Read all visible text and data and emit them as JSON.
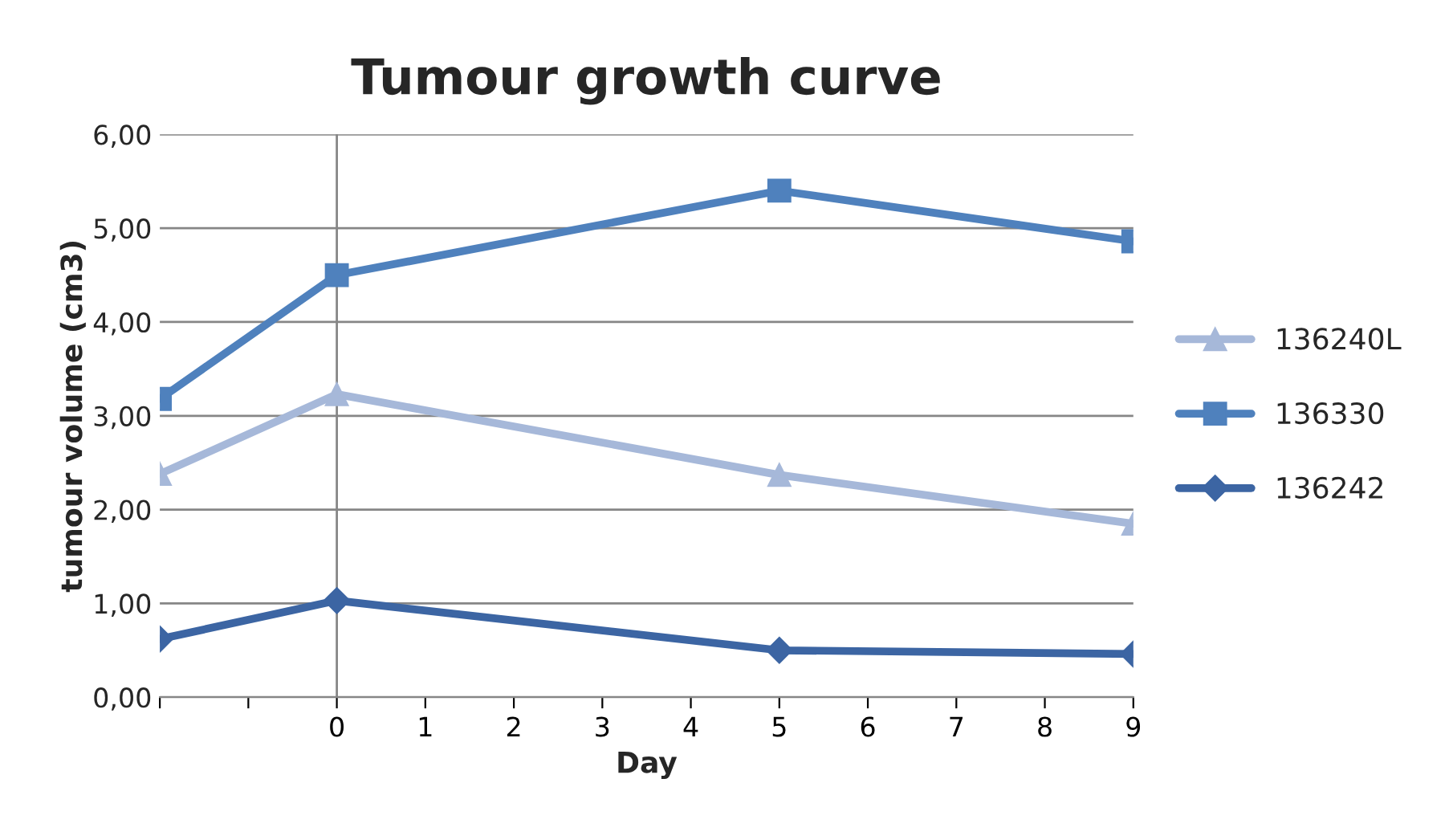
{
  "chart_data": {
    "type": "line",
    "title": "Tumour growth curve",
    "xlabel": "Day",
    "ylabel": "tumour volume (cm3)",
    "x": [
      -2,
      0,
      5,
      9
    ],
    "series": [
      {
        "name": "136240L",
        "color": "#a6b8d9",
        "marker": "triangle",
        "values": [
          2.38,
          3.23,
          2.37,
          1.85
        ]
      },
      {
        "name": "136330",
        "color": "#4f81bd",
        "marker": "square",
        "values": [
          3.18,
          4.5,
          5.4,
          4.86
        ]
      },
      {
        "name": "136242",
        "color": "#3c65a3",
        "marker": "diamond",
        "values": [
          0.62,
          1.03,
          0.5,
          0.46
        ]
      }
    ],
    "xlim": [
      -2,
      9
    ],
    "xticks": [
      {
        "value": -2,
        "label": null
      },
      {
        "value": -1,
        "label": null
      },
      0,
      1,
      2,
      3,
      4,
      5,
      6,
      7,
      8,
      9
    ],
    "ylim": [
      0,
      6
    ],
    "yticks": [
      {
        "value": 0,
        "label": "0,00"
      },
      {
        "value": 1,
        "label": "1,00"
      },
      {
        "value": 2,
        "label": "2,00"
      },
      {
        "value": 3,
        "label": "3,00"
      },
      {
        "value": 4,
        "label": "4,00"
      },
      {
        "value": 5,
        "label": "5,00"
      },
      {
        "value": 6,
        "label": "6,00"
      }
    ],
    "ref_lines": [
      {
        "axis": "x",
        "value": 0,
        "color": "#868686"
      }
    ],
    "grid": "y",
    "legend": "right",
    "line_style": "solid"
  }
}
